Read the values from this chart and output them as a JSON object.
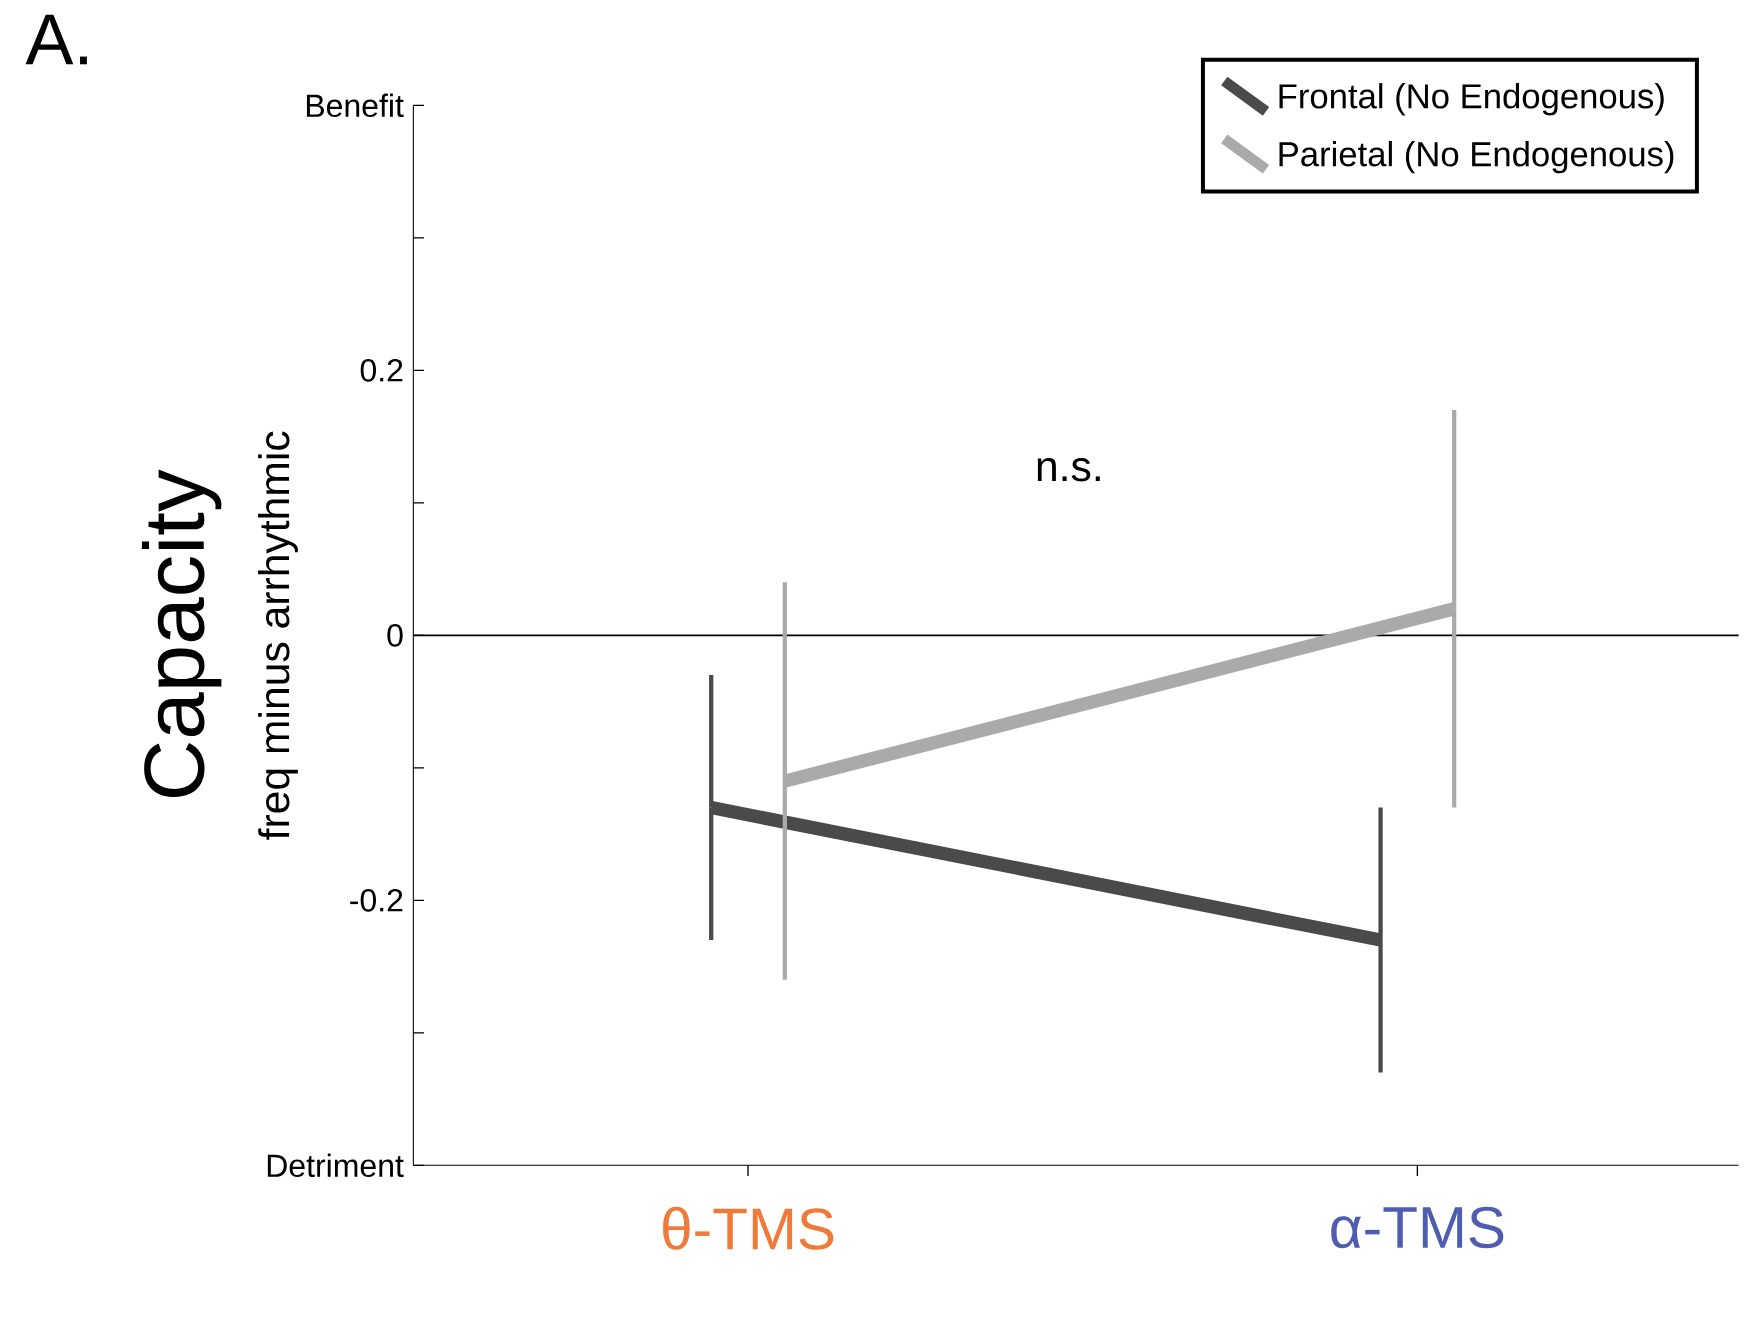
{
  "chart_data": {
    "type": "line",
    "title": "A.",
    "ylabel": "Capacity",
    "categories": [
      "θ-TMS",
      "α-TMS"
    ],
    "series": [
      {
        "name": "Frontal (No Endogenous)",
        "color": "#4a4a4a",
        "values": [
          -0.13,
          -0.23
        ],
        "errors": [
          0.1,
          0.1
        ]
      },
      {
        "name": "Parietal (No Endogenous)",
        "color": "#aaaaaa",
        "values": [
          -0.11,
          0.02
        ],
        "errors": [
          0.15,
          0.15
        ]
      }
    ],
    "ylim": [
      -0.4,
      0.4
    ],
    "yticks": [
      {
        "value": -0.4,
        "label": "Detriment"
      },
      {
        "value": -0.3,
        "label": null
      },
      -0.2,
      {
        "value": -0.1,
        "label": null
      },
      0,
      {
        "value": 0.1,
        "label": null
      },
      0.2,
      {
        "value": 0.3,
        "label": null
      },
      {
        "value": 0.4,
        "label": "Benefit"
      }
    ],
    "ref_lines": [
      {
        "axis": "y",
        "value": 0,
        "color": "#000000"
      }
    ],
    "annotations": [
      "n.s.",
      "freq minus arrhythmic"
    ],
    "legend": "top right"
  }
}
